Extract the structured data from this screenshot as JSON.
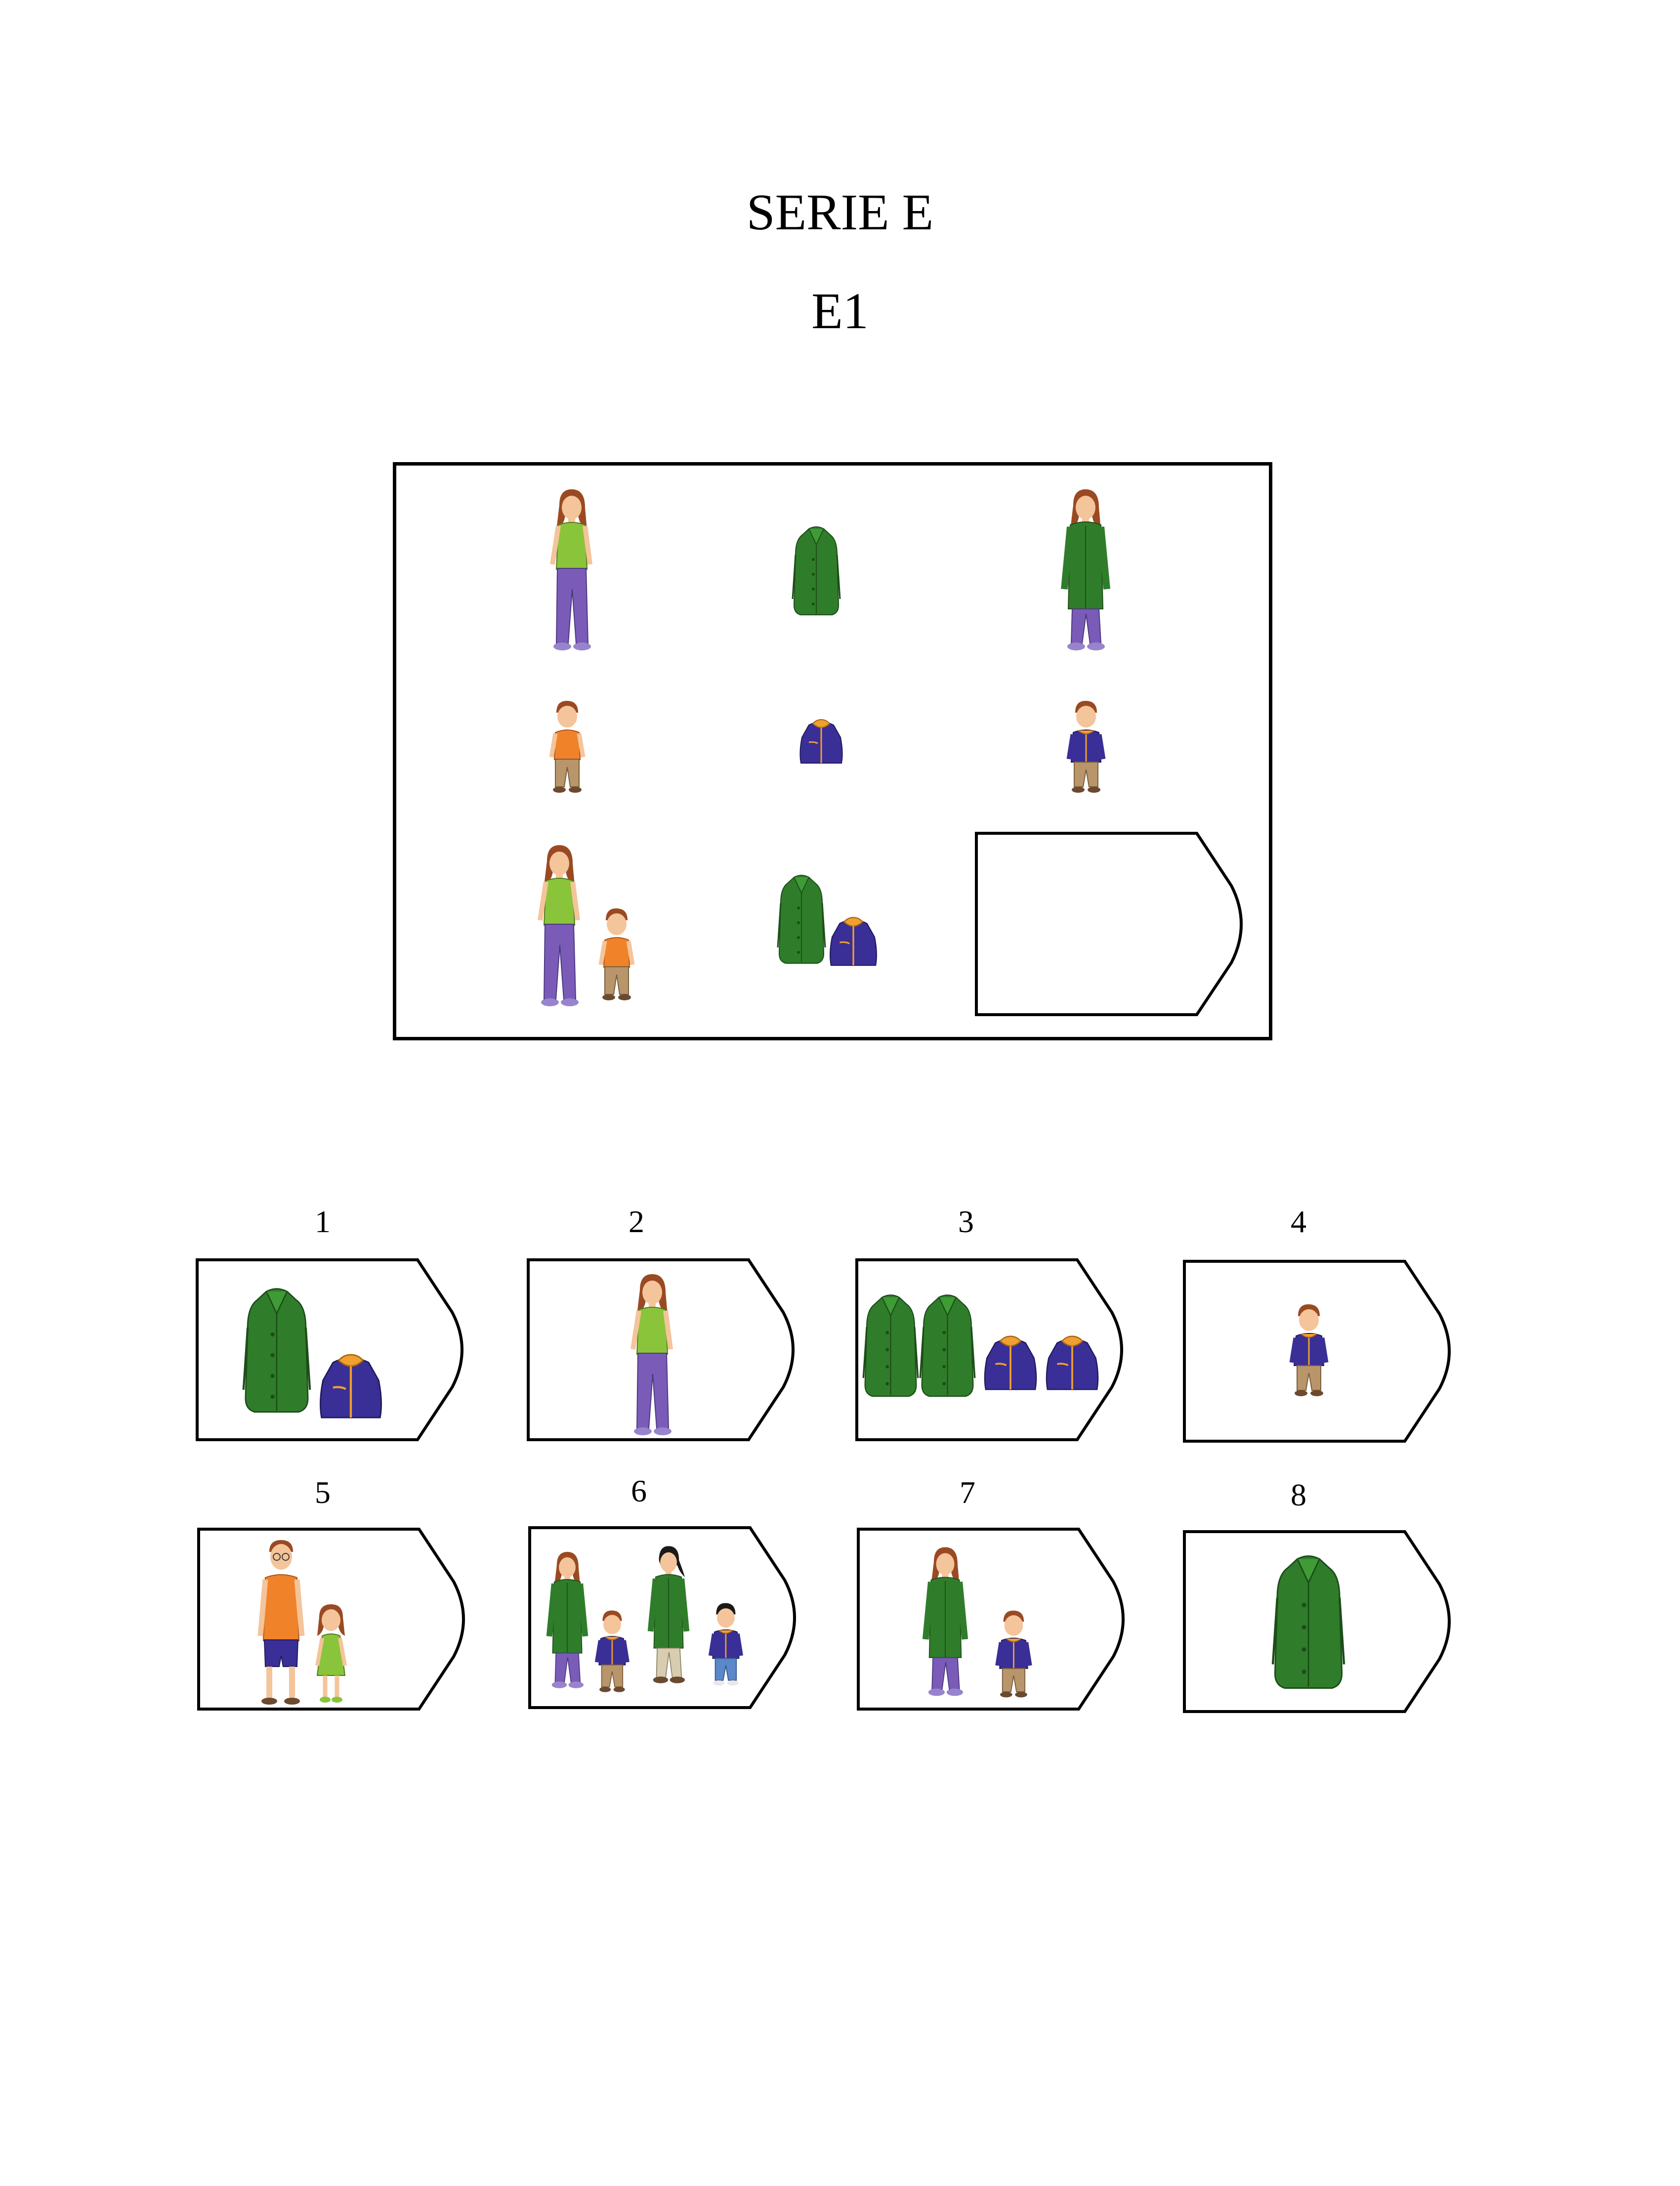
{
  "header": {
    "series_title": "SERIE E",
    "item_title": "E1"
  },
  "matrix": {
    "rows": [
      [
        "woman-casual-figure",
        "green-coat",
        "woman-green-coat-figure"
      ],
      [
        "boy-casual-figure",
        "blue-jacket",
        "boy-blue-jacket-figure"
      ],
      [
        "woman-and-boy-casual-figures",
        "green-coat-and-blue-jacket",
        "missing-answer-slot"
      ]
    ]
  },
  "options": [
    {
      "number": "1",
      "content": "green-coat-and-blue-jacket"
    },
    {
      "number": "2",
      "content": "woman-casual-figure"
    },
    {
      "number": "3",
      "content": "two-green-coats-two-blue-jackets"
    },
    {
      "number": "4",
      "content": "boy-blue-jacket-figure"
    },
    {
      "number": "5",
      "content": "man-and-girl-figures"
    },
    {
      "number": "6",
      "content": "two-women-two-boys-in-coats"
    },
    {
      "number": "7",
      "content": "woman-and-boy-in-coats"
    },
    {
      "number": "8",
      "content": "green-coat"
    }
  ],
  "colors": {
    "coat_green": "#2f7d2a",
    "jacket_blue": "#3a2f96",
    "shirt_lime": "#8ac43a",
    "pants_purple": "#7a5cb8",
    "shirt_orange": "#f0822a",
    "hair_brown": "#9a4a22",
    "skin": "#f4c49a",
    "khaki": "#b8956a"
  }
}
